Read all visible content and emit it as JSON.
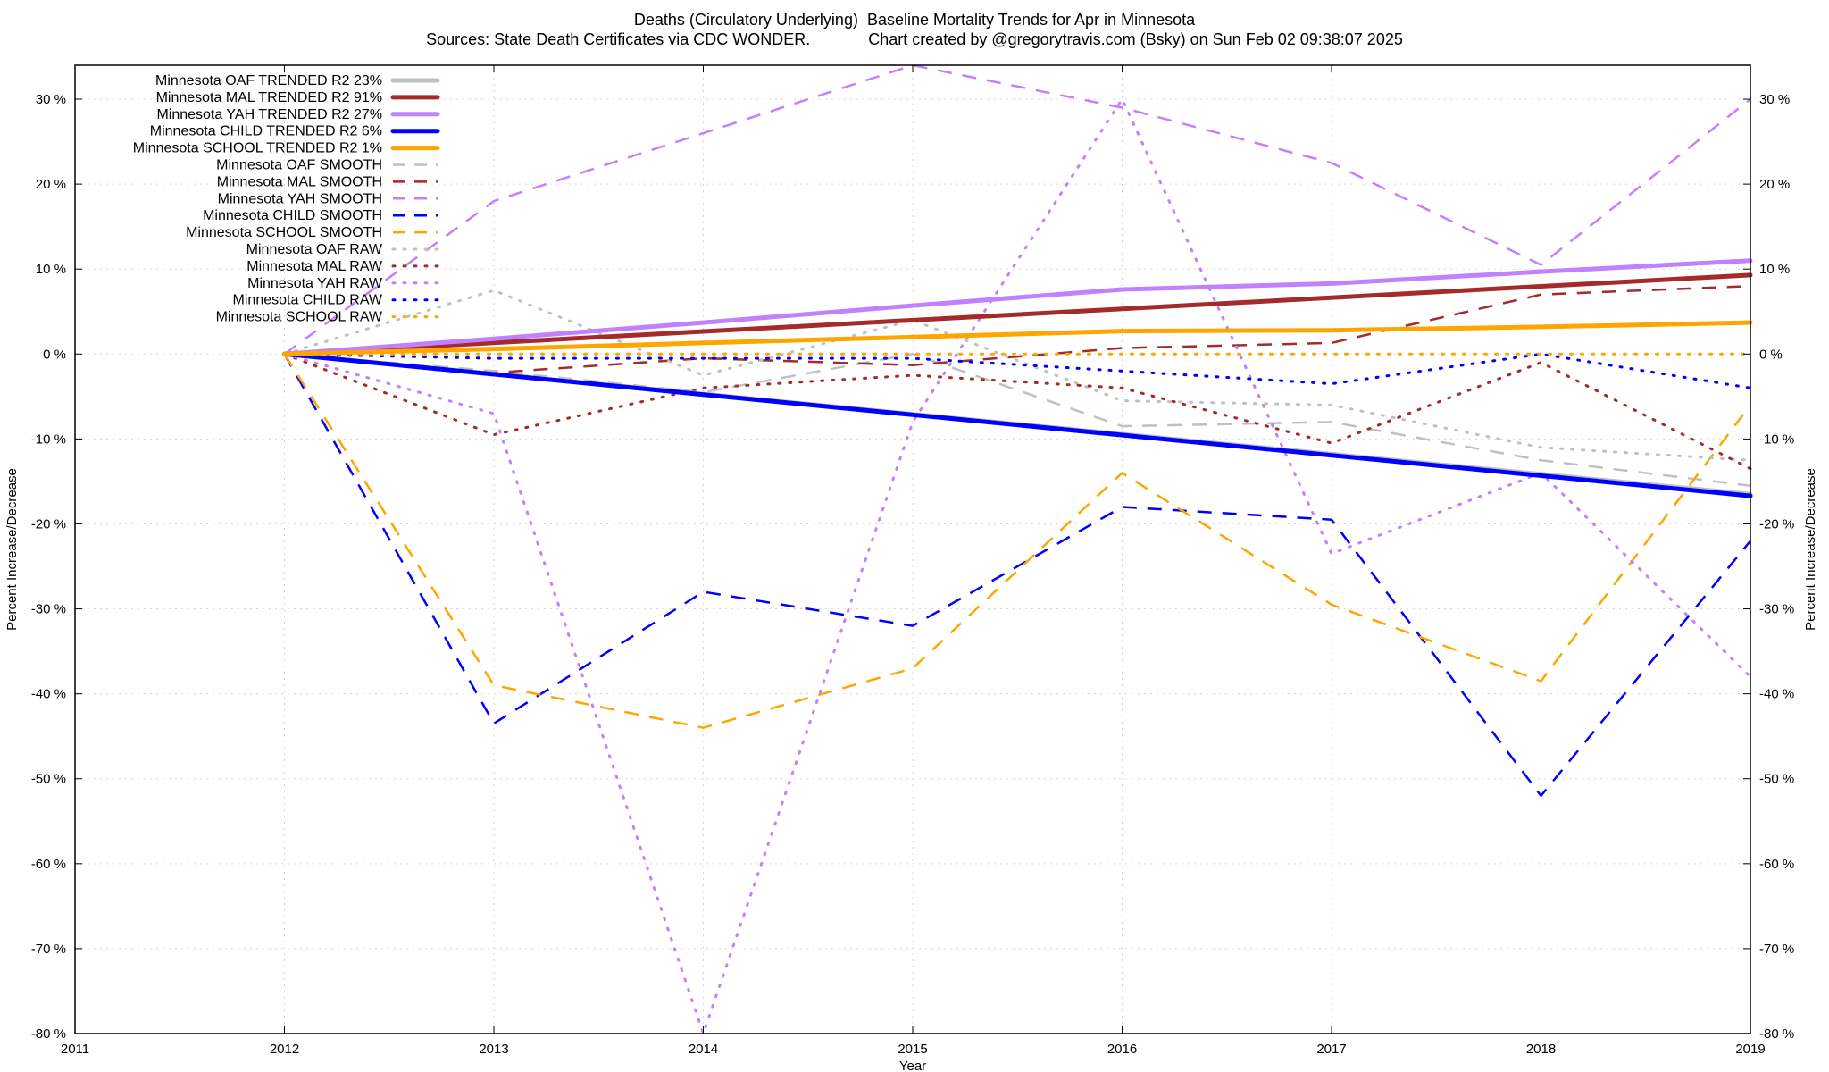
{
  "title": "Deaths (Circulatory Underlying)  Baseline Mortality Trends for Apr in Minnesota",
  "subtitle": "Sources: State Death Certificates via CDC WONDER.             Chart created by @gregorytravis.com (Bsky) on Sun Feb 02 09:38:07 2025",
  "chart_data": {
    "type": "line",
    "xlabel": "Year",
    "ylabel": "Percent Increase/Decrease",
    "y2label": "Percent Increase/Decrease",
    "xlim": [
      2011,
      2019
    ],
    "ylim": [
      -80,
      34
    ],
    "x_ticks": [
      2011,
      2012,
      2013,
      2014,
      2015,
      2016,
      2017,
      2018,
      2019
    ],
    "y_ticks": [
      -80,
      -70,
      -60,
      -50,
      -40,
      -30,
      -20,
      -10,
      0,
      10,
      20,
      30
    ],
    "y_tick_suffix": " %",
    "grid": true,
    "legend_position": "top-left",
    "series": [
      {
        "name": "Minnesota OAF TRENDED R2  23%",
        "style": "trend",
        "color": "#c0c0c0",
        "x": [
          2012,
          2019
        ],
        "y": [
          0,
          -16.5
        ]
      },
      {
        "name": "Minnesota MAL TRENDED R2  91%",
        "style": "trend",
        "color": "#a52a2a",
        "x": [
          2012,
          2019
        ],
        "y": [
          0,
          9.3
        ]
      },
      {
        "name": "Minnesota YAH TRENDED R2  27%",
        "style": "trend",
        "color": "#c080ff",
        "x": [
          2012,
          2013,
          2014,
          2015,
          2016,
          2017,
          2018,
          2019
        ],
        "y": [
          0,
          1.8,
          3.7,
          5.7,
          7.6,
          8.3,
          9.7,
          11.0
        ]
      },
      {
        "name": "Minnesota CHILD TRENDED R2  6%",
        "style": "trend",
        "color": "#0000ff",
        "x": [
          2012,
          2019
        ],
        "y": [
          0,
          -16.7
        ]
      },
      {
        "name": "Minnesota SCHOOL TRENDED R2  1%",
        "style": "trend",
        "color": "#ffa500",
        "x": [
          2012,
          2013,
          2014,
          2015,
          2016,
          2017,
          2018,
          2019
        ],
        "y": [
          0,
          0.6,
          1.3,
          2.0,
          2.7,
          2.8,
          3.2,
          3.7
        ]
      },
      {
        "name": "Minnesota OAF SMOOTH",
        "style": "smooth",
        "color": "#c0c0c0",
        "x": [
          2012,
          2013,
          2014,
          2015,
          2016,
          2017,
          2018,
          2019
        ],
        "y": [
          0,
          -2,
          -4.5,
          0,
          -8.5,
          -8,
          -12.5,
          -15.5
        ]
      },
      {
        "name": "Minnesota MAL SMOOTH",
        "style": "smooth",
        "color": "#a52a2a",
        "x": [
          2012,
          2013,
          2014,
          2015,
          2016,
          2017,
          2018,
          2019
        ],
        "y": [
          0,
          -2.2,
          -0.5,
          -1.3,
          0.7,
          1.3,
          7,
          8
        ]
      },
      {
        "name": "Minnesota YAH SMOOTH",
        "style": "smooth",
        "color": "#c080ff",
        "x": [
          2012,
          2013,
          2014,
          2015,
          2016,
          2017,
          2018,
          2019
        ],
        "y": [
          0,
          18,
          26,
          34,
          29,
          22.5,
          10.5,
          30
        ]
      },
      {
        "name": "Minnesota CHILD SMOOTH",
        "style": "smooth",
        "color": "#0000ff",
        "x": [
          2012,
          2013,
          2014,
          2015,
          2016,
          2017,
          2018,
          2019
        ],
        "y": [
          0,
          -43.5,
          -28,
          -32,
          -18,
          -19.5,
          -52,
          -22
        ]
      },
      {
        "name": "Minnesota SCHOOL SMOOTH",
        "style": "smooth",
        "color": "#ffa500",
        "x": [
          2012,
          2013,
          2014,
          2015,
          2016,
          2017,
          2018,
          2019
        ],
        "y": [
          0,
          -39,
          -44,
          -37,
          -14,
          -29.5,
          -38.5,
          -6
        ]
      },
      {
        "name": "Minnesota OAF RAW",
        "style": "raw",
        "color": "#c0c0c0",
        "x": [
          2012,
          2013,
          2014,
          2015,
          2016,
          2017,
          2018,
          2019
        ],
        "y": [
          0,
          7.5,
          -2.5,
          4,
          -5.5,
          -6,
          -11,
          -12.5
        ]
      },
      {
        "name": "Minnesota MAL RAW",
        "style": "raw",
        "color": "#a52a2a",
        "x": [
          2012,
          2013,
          2014,
          2015,
          2016,
          2017,
          2018,
          2019
        ],
        "y": [
          0,
          -9.5,
          -4,
          -2.5,
          -4,
          -10.5,
          -1,
          -13.5
        ]
      },
      {
        "name": "Minnesota YAH RAW",
        "style": "raw",
        "color": "#c080ff",
        "x": [
          2012,
          2013,
          2014,
          2015,
          2016,
          2017,
          2018,
          2019
        ],
        "y": [
          0,
          -7,
          -80,
          -8,
          30,
          -23.5,
          -14,
          -38
        ]
      },
      {
        "name": "Minnesota CHILD RAW",
        "style": "raw",
        "color": "#0000ff",
        "x": [
          2012,
          2013,
          2014,
          2015,
          2016,
          2017,
          2018,
          2019
        ],
        "y": [
          0,
          -0.5,
          -0.5,
          -0.5,
          -2,
          -3.5,
          0,
          -4
        ]
      },
      {
        "name": "Minnesota SCHOOL RAW",
        "style": "raw",
        "color": "#ffa500",
        "x": [
          2012,
          2013,
          2014,
          2015,
          2016,
          2017,
          2018,
          2019
        ],
        "y": [
          0,
          0,
          0,
          0,
          0,
          0,
          0,
          0
        ]
      }
    ]
  }
}
